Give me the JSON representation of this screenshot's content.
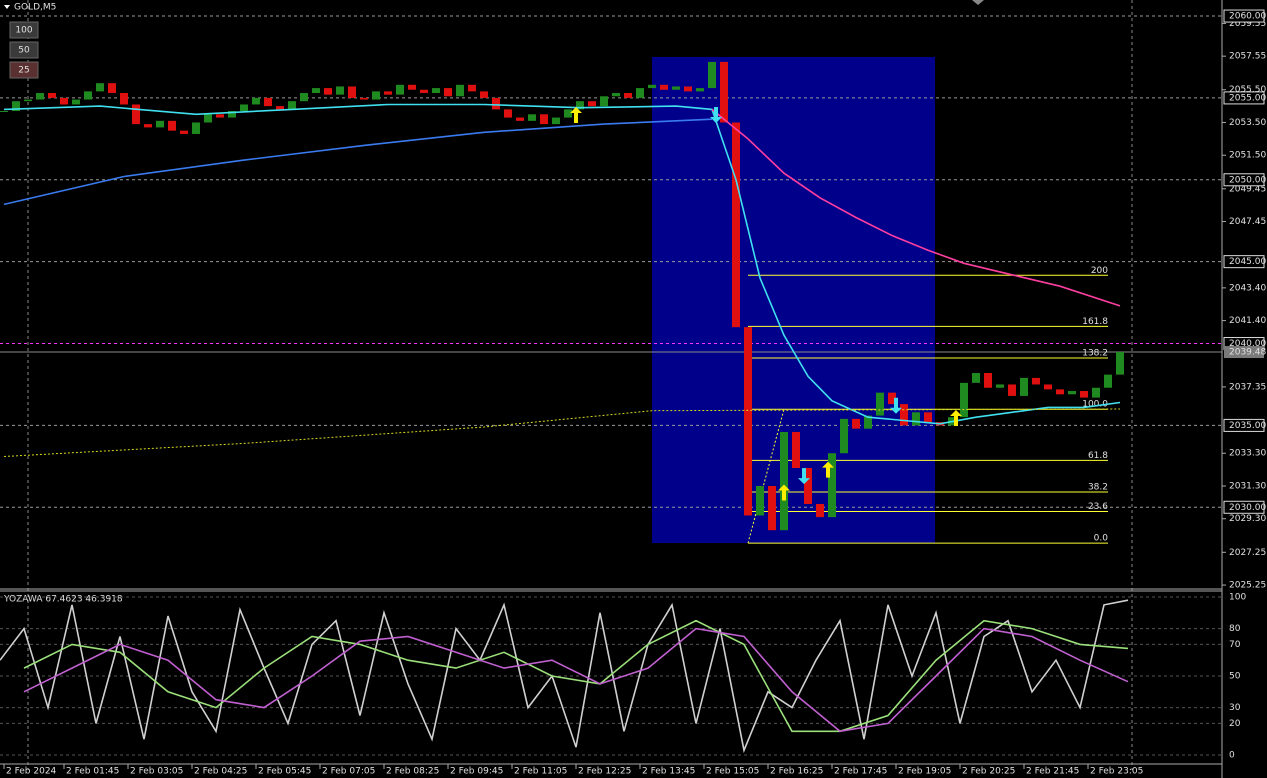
{
  "header": {
    "symbol": "GOLD,M5",
    "buttons": [
      "100",
      "50",
      "25"
    ]
  },
  "chart_data": [
    {
      "type": "candlestick",
      "ylim": [
        2025.07,
        2060.98
      ],
      "xlim": [
        0,
        305.5
      ],
      "yticks": [
        2059.55,
        2057.55,
        {
          "value": 2055.5,
          "label": "2055.50"
        },
        {
          "value": 2053.5,
          "label": "2053.50"
        },
        {
          "value": 2051.5,
          "label": "2051.50"
        },
        2049.45,
        2047.45,
        {
          "value": 2043.4,
          "label": "2043.40"
        },
        {
          "value": 2041.4,
          "label": "2041.40"
        },
        2037.35,
        {
          "value": 2033.3,
          "label": "2033.30"
        },
        {
          "value": 2031.3,
          "label": "2031.30"
        },
        {
          "value": 2029.3,
          "label": "2029.30"
        },
        2027.25,
        2025.25
      ],
      "levels": [
        {
          "value": 2060,
          "label": "2060.00"
        },
        {
          "value": 2055,
          "label": "2055.00"
        },
        {
          "value": 2050,
          "label": "2050.00"
        },
        {
          "value": 2045,
          "label": "2045.00"
        },
        {
          "value": 2035,
          "label": "2035.00"
        },
        {
          "value": 2030,
          "label": "2030.00"
        }
      ],
      "level_color": "#9a9a9a",
      "alert_line": {
        "value": 2040,
        "label": "2040.00",
        "color": "#ff33ff"
      },
      "current_price": 2039.48,
      "xticks": [
        {
          "value": 1,
          "label": "2 Feb 2024"
        },
        {
          "value": 16,
          "label": "2 Feb 01:45"
        },
        {
          "value": 32,
          "label": "2 Feb 03:05"
        },
        {
          "value": 48,
          "label": "2 Feb 04:25"
        },
        {
          "value": 64,
          "label": "2 Feb 05:45"
        },
        {
          "value": 80,
          "label": "2 Feb 07:05"
        },
        {
          "value": 96,
          "label": "2 Feb 08:25"
        },
        {
          "value": 112,
          "label": "2 Feb 09:45"
        },
        {
          "value": 128,
          "label": "2 Feb 11:05"
        },
        {
          "value": 144,
          "label": "2 Feb 12:25"
        },
        {
          "value": 160,
          "label": "2 Feb 13:45"
        },
        {
          "value": 176,
          "label": "2 Feb 15:05"
        },
        {
          "value": 192,
          "label": "2 Feb 16:25"
        },
        {
          "value": 208,
          "label": "2 Feb 17:45"
        },
        {
          "value": 224,
          "label": "2 Feb 19:05"
        },
        {
          "value": 240,
          "label": "2 Feb 20:25"
        },
        {
          "value": 256,
          "label": "2 Feb 21:45"
        },
        {
          "value": 272,
          "label": "2 Feb 23:05"
        }
      ],
      "up_color": "#1f8a1f",
      "down_color": "#e01010",
      "x": [
        1,
        4,
        7,
        10,
        13,
        16,
        19,
        22,
        25,
        28,
        31,
        34,
        37,
        40,
        43,
        46,
        49,
        52,
        55,
        58,
        61,
        64,
        67,
        70,
        73,
        76,
        79,
        82,
        85,
        88,
        91,
        94,
        97,
        100,
        103,
        106,
        109,
        112,
        115,
        118,
        121,
        124,
        127,
        130,
        133,
        136,
        139,
        142,
        145,
        148,
        151,
        154,
        157,
        160,
        163,
        166,
        169,
        172,
        175,
        178,
        181,
        184,
        187,
        190,
        193,
        196,
        199,
        202,
        205,
        208,
        211,
        214,
        217,
        220,
        223,
        226,
        229,
        232,
        235,
        238,
        241,
        244,
        247,
        250,
        253,
        256,
        259,
        262,
        265,
        268,
        271,
        274,
        277,
        280
      ],
      "closes": [
        2054.2,
        2054.8,
        2054.9,
        2055.3,
        2055.0,
        2054.6,
        2054.9,
        2055.4,
        2055.9,
        2055.3,
        2054.6,
        2053.4,
        2053.2,
        2053.6,
        2053.0,
        2052.8,
        2053.5,
        2054.0,
        2053.8,
        2054.2,
        2054.6,
        2055.0,
        2054.5,
        2054.3,
        2054.8,
        2055.3,
        2055.6,
        2055.2,
        2055.7,
        2055.0,
        2054.9,
        2055.4,
        2055.2,
        2055.8,
        2055.5,
        2055.3,
        2055.6,
        2055.1,
        2055.8,
        2055.4,
        2055.0,
        2054.3,
        2053.8,
        2053.6,
        2054.0,
        2053.4,
        2053.8,
        2054.3,
        2054.8,
        2054.5,
        2055.1,
        2055.3,
        2055.0,
        2055.6,
        2055.8,
        2055.5,
        2055.7,
        2055.4,
        2055.6,
        2057.2,
        2053.5,
        2041.0,
        2029.5,
        2031.3,
        2028.6,
        2034.6,
        2032.4,
        2030.2,
        2029.4,
        2033.3,
        2035.4,
        2034.8,
        2035.6,
        2037.0,
        2036.3,
        2035.0,
        2035.8,
        2035.2,
        2035.0,
        2035.5,
        2037.6,
        2038.2,
        2037.3,
        2037.5,
        2036.8,
        2037.9,
        2037.5,
        2037.2,
        2036.9,
        2037.1,
        2036.7,
        2037.3,
        2038.1,
        2039.48
      ],
      "series": [
        {
          "color": "#40e0f0",
          "x": [
            1,
            25,
            49,
            73,
            97,
            121,
            145,
            169,
            178,
            184,
            190,
            196,
            202,
            208,
            217,
            226,
            235,
            244,
            253,
            262,
            271,
            280
          ],
          "values": [
            2054.3,
            2054.5,
            2054.0,
            2054.3,
            2054.6,
            2054.6,
            2054.4,
            2054.5,
            2054.3,
            2050.0,
            2044.0,
            2040.5,
            2038.0,
            2036.5,
            2035.5,
            2035.3,
            2035.1,
            2035.5,
            2035.8,
            2036.1,
            2036.1,
            2036.4
          ]
        },
        {
          "color": "#3a7bf0",
          "x": [
            1,
            31,
            61,
            91,
            121,
            151,
            178
          ],
          "values": [
            2048.5,
            2050.2,
            2051.2,
            2052.1,
            2052.9,
            2053.4,
            2053.7
          ]
        },
        {
          "color": "#ff3fa0",
          "x": [
            178,
            187,
            196,
            205,
            214,
            223,
            232,
            241,
            253,
            265,
            280
          ],
          "values": [
            2054.3,
            2052.5,
            2050.4,
            2048.9,
            2047.7,
            2046.6,
            2045.7,
            2044.9,
            2044.2,
            2043.5,
            2042.3
          ]
        },
        {
          "color": "#d8d820",
          "dashed": true,
          "x": [
            1,
            61,
            121,
            163,
            280
          ],
          "values": [
            2033.1,
            2033.9,
            2034.9,
            2035.9,
            2036.0
          ]
        }
      ],
      "fib": {
        "color": "#ffff33",
        "x": [
          187,
          277
        ],
        "price": [
          2027.81,
          2035.99
        ],
        "levels": [
          200,
          161.8,
          138.2,
          {
            "value": 100,
            "label": "100.0"
          },
          61.8,
          38.2,
          23.6,
          {
            "value": 0,
            "label": "0.0"
          }
        ]
      },
      "signals": [
        {
          "x": 144,
          "price": 2053.96,
          "dir": "up",
          "color": "#ffee00"
        },
        {
          "x": 179,
          "price": 2053.96,
          "dir": "down",
          "color": "#40e0f0"
        },
        {
          "x": 196,
          "price": 2030.9,
          "dir": "up",
          "color": "#ffee00"
        },
        {
          "x": 201,
          "price": 2031.9,
          "dir": "down",
          "color": "#40e0f0"
        },
        {
          "x": 207,
          "price": 2032.3,
          "dir": "up",
          "color": "#ffee00"
        },
        {
          "x": 224,
          "price": 2036.2,
          "dir": "down",
          "color": "#40e0f0"
        },
        {
          "x": 239,
          "price": 2035.45,
          "dir": "up",
          "color": "#ffee00"
        }
      ]
    },
    {
      "type": "line",
      "title": "YOZAWA 67.4623 46.3918",
      "ylim": [
        0,
        100
      ],
      "xlim": [
        0,
        305.5
      ],
      "yticks": [
        100,
        80,
        70,
        50,
        30,
        20,
        0
      ],
      "series": [
        {
          "color": "#d0d0d0",
          "x": [
            0,
            6,
            12,
            18,
            24,
            30,
            36,
            42,
            48,
            54,
            60,
            66,
            72,
            78,
            84,
            90,
            96,
            102,
            108,
            114,
            120,
            126,
            132,
            138,
            144,
            150,
            156,
            162,
            168,
            174,
            180,
            186,
            192,
            198,
            204,
            210,
            216,
            222,
            228,
            234,
            240,
            246,
            252,
            258,
            264,
            270,
            276,
            282
          ],
          "values": [
            60,
            80,
            30,
            95,
            20,
            75,
            10,
            88,
            40,
            15,
            92,
            55,
            20,
            70,
            85,
            25,
            90,
            45,
            10,
            80,
            60,
            95,
            30,
            50,
            5,
            90,
            15,
            70,
            95,
            20,
            80,
            3,
            40,
            30,
            60,
            85,
            10,
            95,
            50,
            90,
            20,
            75,
            85,
            40,
            60,
            30,
            95,
            98
          ]
        },
        {
          "color": "#9be07a",
          "x": [
            6,
            18,
            30,
            42,
            54,
            66,
            78,
            90,
            102,
            114,
            126,
            138,
            150,
            162,
            174,
            186,
            198,
            210,
            222,
            234,
            246,
            258,
            270,
            282
          ],
          "values": [
            55,
            70,
            65,
            40,
            30,
            55,
            75,
            70,
            60,
            55,
            65,
            50,
            45,
            70,
            85,
            70,
            15,
            15,
            25,
            60,
            85,
            80,
            70,
            67.4623
          ]
        },
        {
          "color": "#c060d0",
          "x": [
            6,
            18,
            30,
            42,
            54,
            66,
            78,
            90,
            102,
            114,
            126,
            138,
            150,
            162,
            174,
            186,
            198,
            210,
            222,
            234,
            246,
            258,
            270,
            282
          ],
          "values": [
            40,
            55,
            70,
            60,
            35,
            30,
            50,
            72,
            75,
            65,
            55,
            60,
            45,
            55,
            80,
            75,
            40,
            15,
            20,
            50,
            80,
            75,
            60,
            46.3918
          ]
        }
      ]
    }
  ]
}
